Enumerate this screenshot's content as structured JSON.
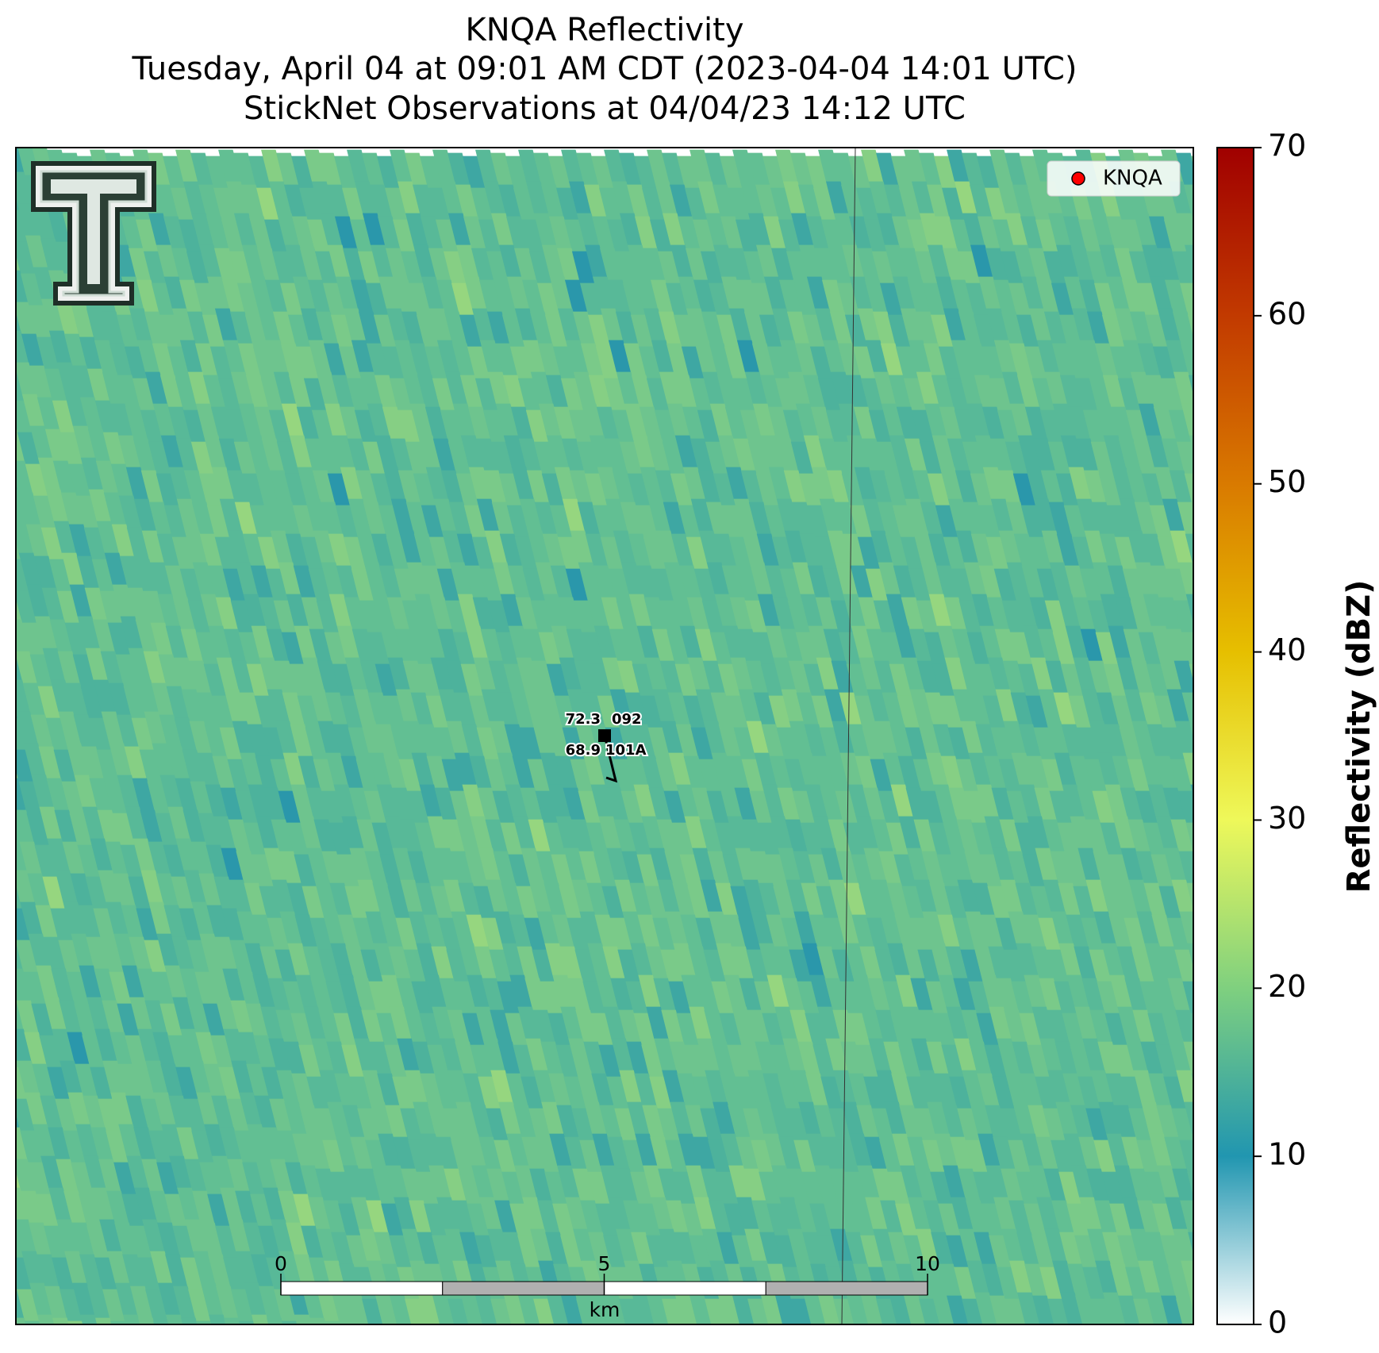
{
  "chart_data": {
    "type": "radar-map",
    "title": [
      "KNQA Reflectivity",
      "Tuesday, April 04 at 09:01 AM CDT (2023-04-04 14:01 UTC)",
      "StickNet Observations at 04/04/23 14:12 UTC"
    ],
    "colorbar": {
      "label": "Reflectivity (dBZ)",
      "ylim": [
        0,
        70
      ],
      "yticks": [
        0,
        10,
        20,
        30,
        40,
        50,
        60,
        70
      ],
      "colors": [
        "#ffffff",
        "#2196b0",
        "#7fd07f",
        "#eef85a",
        "#e6bf00",
        "#d97a00",
        "#c23a00",
        "#a00000"
      ]
    },
    "legend": {
      "label": "KNQA",
      "color": "#ff0000",
      "corner": "upper right"
    },
    "scale_bar": {
      "unit": "km",
      "xlim": [
        0,
        10
      ],
      "xticks": [
        0,
        5,
        10
      ]
    },
    "station": {
      "temperature": 72.3,
      "dewpoint": 68.9,
      "upper_label": "092",
      "lower_label": "101A"
    }
  }
}
